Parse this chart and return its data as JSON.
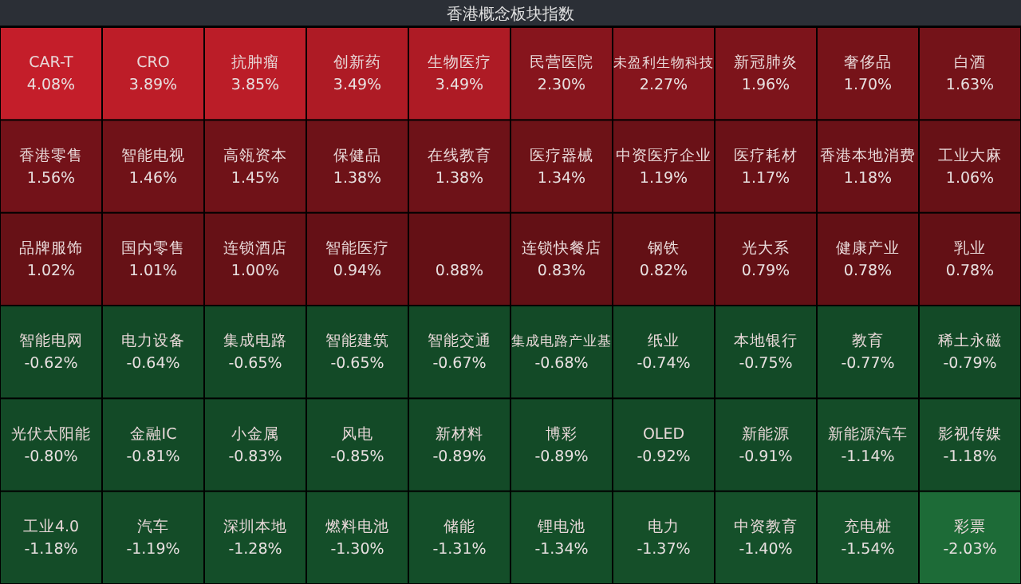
{
  "chart_data": {
    "type": "other",
    "title": "香港概念板块指数",
    "categories": [
      "CAR-T",
      "CRO",
      "抗肿瘤",
      "创新药",
      "生物医疗",
      "民营医院",
      "未盈利生物科技",
      "新冠肺炎",
      "奢侈品",
      "白酒",
      "香港零售",
      "智能电视",
      "高瓴资本",
      "保健品",
      "在线教育",
      "医疗器械",
      "中资医疗企业",
      "医疗耗材",
      "香港本地消费",
      "工业大麻",
      "品牌服饰",
      "国内零售",
      "连锁酒店",
      "智能医疗",
      null,
      "连锁快餐店",
      "钢铁",
      "光大系",
      "健康产业",
      "乳业",
      "智能电网",
      "电力设备",
      "集成电路",
      "智能建筑",
      "智能交通",
      "集成电路产业基",
      "纸业",
      "本地银行",
      "教育",
      "稀土永磁",
      "光伏太阳能",
      "金融IC",
      "小金属",
      "风电",
      "新材料",
      "博彩",
      "OLED",
      "新能源",
      "新能源汽车",
      "影视传媒",
      "工业4.0",
      "汽车",
      "深圳本地",
      "燃料电池",
      "储能",
      "锂电池",
      "电力",
      "中资教育",
      "充电桩",
      "彩票"
    ],
    "values": [
      4.08,
      3.89,
      3.85,
      3.49,
      3.49,
      2.3,
      2.27,
      1.96,
      1.7,
      1.63,
      1.56,
      1.46,
      1.45,
      1.38,
      1.38,
      1.34,
      1.19,
      1.17,
      1.18,
      1.06,
      1.02,
      1.01,
      1.0,
      0.94,
      0.88,
      0.83,
      0.82,
      0.79,
      0.78,
      0.78,
      -0.62,
      -0.64,
      -0.65,
      -0.65,
      -0.67,
      -0.68,
      -0.74,
      -0.75,
      -0.77,
      -0.79,
      -0.8,
      -0.81,
      -0.83,
      -0.85,
      -0.89,
      -0.89,
      -0.92,
      -0.91,
      -1.14,
      -1.18,
      -1.18,
      -1.19,
      -1.28,
      -1.3,
      -1.31,
      -1.34,
      -1.37,
      -1.4,
      -1.54,
      -2.03
    ],
    "value_labels": [
      "4.08%",
      "3.89%",
      "3.85%",
      "3.49%",
      "3.49%",
      "2.30%",
      "2.27%",
      "1.96%",
      "1.70%",
      "1.63%",
      "1.56%",
      "1.46%",
      "1.45%",
      "1.38%",
      "1.38%",
      "1.34%",
      "1.19%",
      "1.17%",
      "1.18%",
      "1.06%",
      "1.02%",
      "1.01%",
      "1.00%",
      "0.94%",
      "0.88%",
      "0.83%",
      "0.82%",
      "0.79%",
      "0.78%",
      "0.78%",
      "-0.62%",
      "-0.64%",
      "-0.65%",
      "-0.65%",
      "-0.67%",
      "-0.68%",
      "-0.74%",
      "-0.75%",
      "-0.77%",
      "-0.79%",
      "-0.80%",
      "-0.81%",
      "-0.83%",
      "-0.85%",
      "-0.89%",
      "-0.89%",
      "-0.92%",
      "-0.91%",
      "-1.14%",
      "-1.18%",
      "-1.18%",
      "-1.19%",
      "-1.28%",
      "-1.30%",
      "-1.31%",
      "-1.34%",
      "-1.37%",
      "-1.40%",
      "-1.54%",
      "-2.03%"
    ]
  }
}
